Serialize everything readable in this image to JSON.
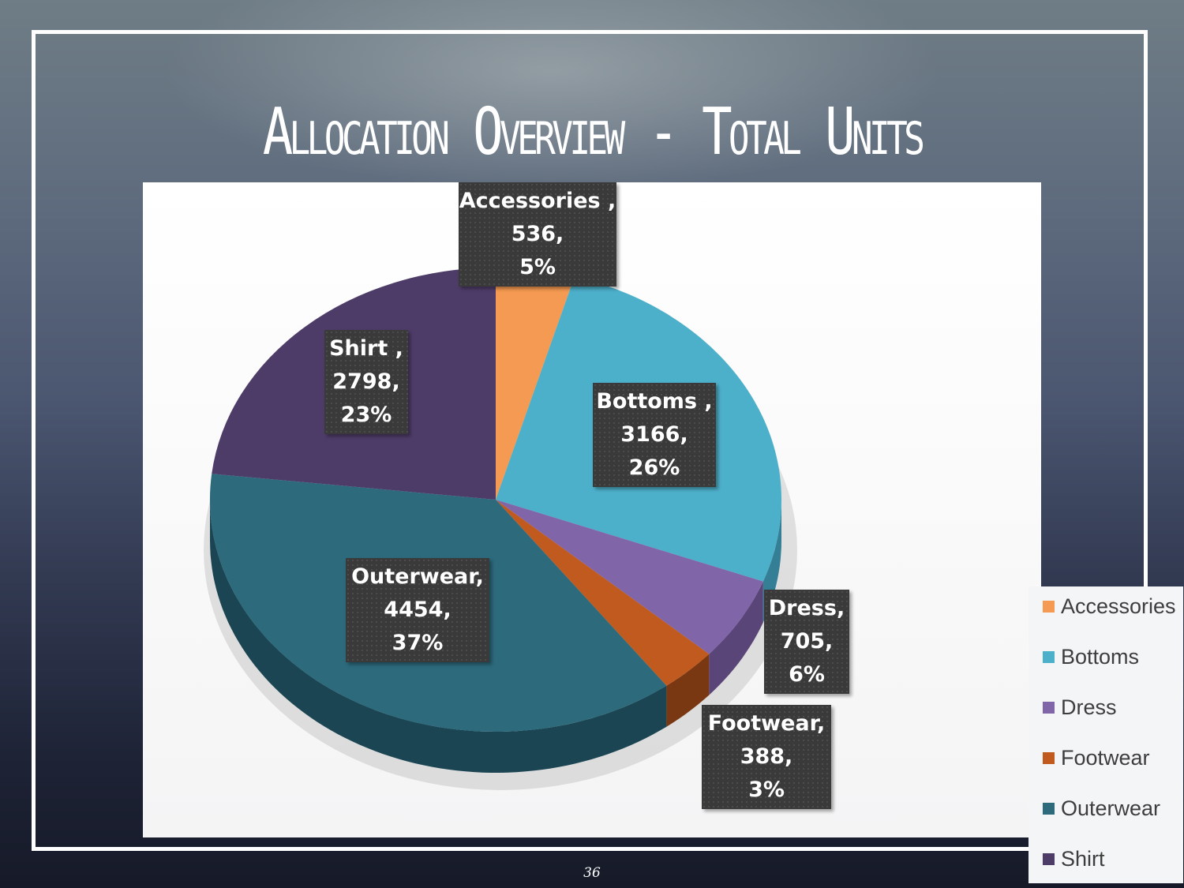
{
  "slide": {
    "title": "Allocation Overview - Total Units",
    "page_number": "36"
  },
  "chart_data": {
    "type": "pie",
    "title": "",
    "categories": [
      "Accessories",
      "Bottoms",
      "Dress",
      "Footwear",
      "Outerwear",
      "Shirt"
    ],
    "values": [
      536,
      3166,
      705,
      388,
      4454,
      2798
    ],
    "percentages": [
      "5%",
      "26%",
      "6%",
      "3%",
      "37%",
      "23%"
    ],
    "colors": [
      "#f59a52",
      "#4db0cb",
      "#8065a8",
      "#c05a1e",
      "#2c6a7c",
      "#4e3c68"
    ],
    "side_colors": [
      "#b86a30",
      "#347f95",
      "#5a4578",
      "#7a3812",
      "#1b4552",
      "#33264a"
    ],
    "legend": [
      "Accessories",
      "Bottoms",
      "Dress",
      "Footwear",
      "Outerwear",
      "Shirt"
    ],
    "legend_position": "right",
    "data_labels": [
      {
        "line1": "Accessories ,",
        "line2": "536,",
        "line3": "5%"
      },
      {
        "line1": "Bottoms ,",
        "line2": "3166,",
        "line3": "26%"
      },
      {
        "line1": "Dress,",
        "line2": "705,",
        "line3": "6%"
      },
      {
        "line1": "Footwear,",
        "line2": "388,",
        "line3": "3%"
      },
      {
        "line1": "Outerwear,",
        "line2": "4454,",
        "line3": "37%"
      },
      {
        "line1": "Shirt ,",
        "line2": "2798,",
        "line3": "23%"
      }
    ]
  }
}
